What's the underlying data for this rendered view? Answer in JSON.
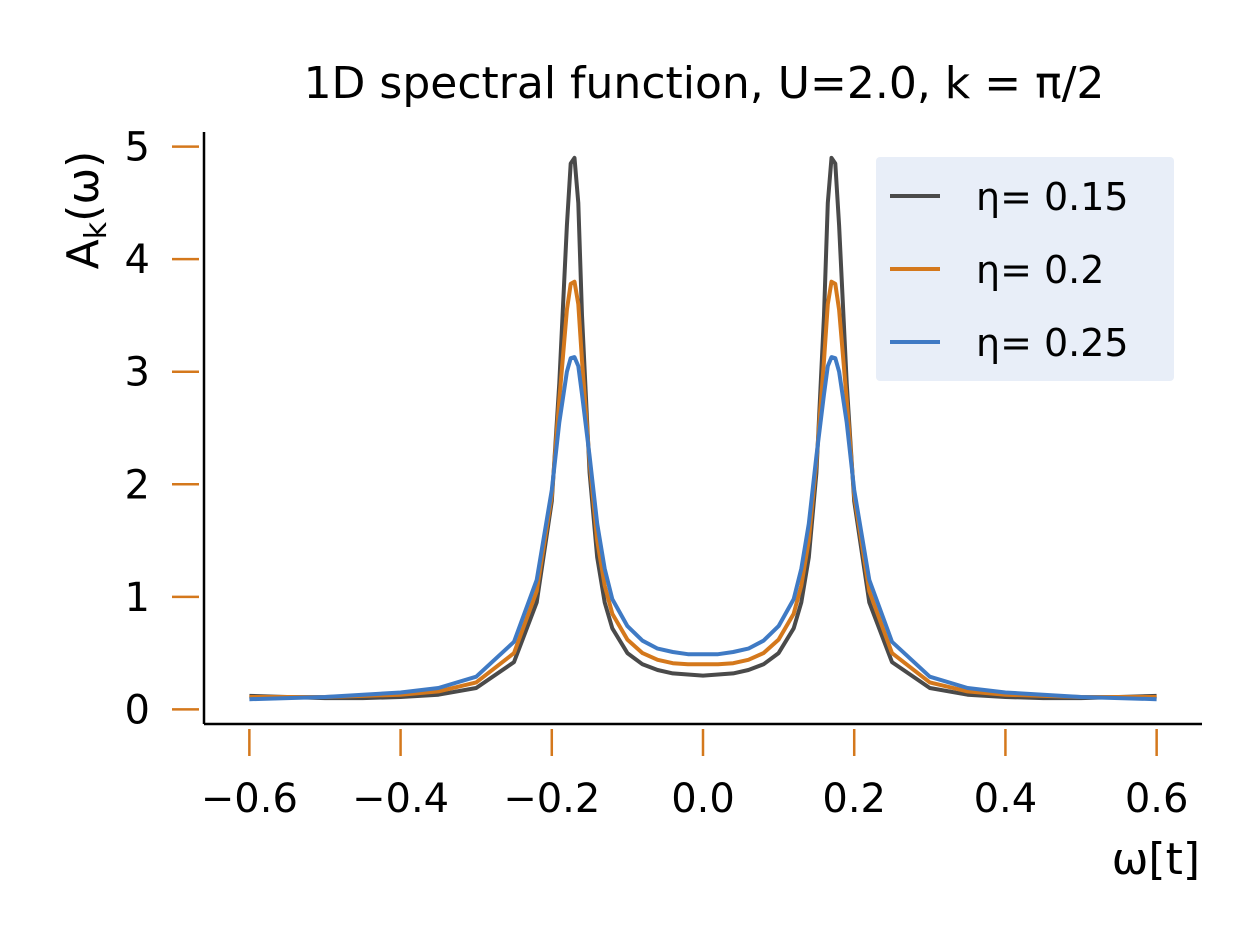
{
  "chart_data": {
    "type": "line",
    "title": "1D spectral function, U=2.0, k = π/2",
    "xlabel": "ω[t]",
    "ylabel_main": "A",
    "ylabel_sub": "k",
    "ylabel_tail": "(ω)",
    "xlim": [
      -0.66,
      0.66
    ],
    "ylim": [
      -0.13,
      5.13
    ],
    "xticks": [
      -0.6,
      -0.4,
      -0.2,
      0.0,
      0.2,
      0.4,
      0.6
    ],
    "xtick_labels": [
      "−0.6",
      "−0.4",
      "−0.2",
      "0.0",
      "0.2",
      "0.4",
      "0.6"
    ],
    "yticks": [
      0,
      1,
      2,
      3,
      4,
      5
    ],
    "ytick_labels": [
      "0",
      "1",
      "2",
      "3",
      "4",
      "5"
    ],
    "grid": false,
    "legend_position": "top-right",
    "tick_color": "#d4781c",
    "legend_bg": "#e8eef8",
    "series": [
      {
        "name": "η= 0.15",
        "color": "#4a4a4a",
        "x": [
          -0.6,
          -0.55,
          -0.5,
          -0.45,
          -0.4,
          -0.35,
          -0.3,
          -0.25,
          -0.22,
          -0.2,
          -0.19,
          -0.18,
          -0.175,
          -0.17,
          -0.165,
          -0.16,
          -0.15,
          -0.14,
          -0.13,
          -0.12,
          -0.1,
          -0.08,
          -0.06,
          -0.04,
          -0.02,
          0.0,
          0.02,
          0.04,
          0.06,
          0.08,
          0.1,
          0.12,
          0.13,
          0.14,
          0.15,
          0.16,
          0.165,
          0.17,
          0.175,
          0.18,
          0.19,
          0.2,
          0.22,
          0.25,
          0.3,
          0.35,
          0.4,
          0.45,
          0.5,
          0.55,
          0.6
        ],
        "y": [
          0.12,
          0.11,
          0.1,
          0.1,
          0.11,
          0.13,
          0.19,
          0.42,
          0.95,
          1.85,
          2.9,
          4.3,
          4.85,
          4.9,
          4.5,
          3.5,
          2.1,
          1.35,
          0.95,
          0.72,
          0.5,
          0.4,
          0.35,
          0.32,
          0.31,
          0.3,
          0.31,
          0.32,
          0.35,
          0.4,
          0.5,
          0.72,
          0.95,
          1.35,
          2.1,
          3.5,
          4.5,
          4.9,
          4.85,
          4.3,
          2.9,
          1.85,
          0.95,
          0.42,
          0.19,
          0.13,
          0.11,
          0.1,
          0.1,
          0.11,
          0.12
        ]
      },
      {
        "name": "η= 0.2",
        "color": "#d4781c",
        "x": [
          -0.6,
          -0.55,
          -0.5,
          -0.45,
          -0.4,
          -0.35,
          -0.3,
          -0.25,
          -0.22,
          -0.2,
          -0.19,
          -0.18,
          -0.175,
          -0.17,
          -0.165,
          -0.16,
          -0.15,
          -0.14,
          -0.13,
          -0.12,
          -0.1,
          -0.08,
          -0.06,
          -0.04,
          -0.02,
          0.0,
          0.02,
          0.04,
          0.06,
          0.08,
          0.1,
          0.12,
          0.13,
          0.14,
          0.15,
          0.16,
          0.165,
          0.17,
          0.175,
          0.18,
          0.19,
          0.2,
          0.22,
          0.25,
          0.3,
          0.35,
          0.4,
          0.45,
          0.5,
          0.55,
          0.6
        ],
        "y": [
          0.11,
          0.11,
          0.11,
          0.12,
          0.13,
          0.16,
          0.24,
          0.5,
          1.05,
          1.9,
          2.75,
          3.55,
          3.78,
          3.8,
          3.6,
          3.1,
          2.2,
          1.5,
          1.1,
          0.85,
          0.62,
          0.5,
          0.44,
          0.41,
          0.4,
          0.4,
          0.4,
          0.41,
          0.44,
          0.5,
          0.62,
          0.85,
          1.1,
          1.5,
          2.2,
          3.1,
          3.6,
          3.8,
          3.78,
          3.55,
          2.75,
          1.9,
          1.05,
          0.5,
          0.24,
          0.16,
          0.13,
          0.12,
          0.11,
          0.11,
          0.11
        ]
      },
      {
        "name": "η= 0.25",
        "color": "#3f7ac4",
        "x": [
          -0.6,
          -0.55,
          -0.5,
          -0.45,
          -0.4,
          -0.35,
          -0.3,
          -0.25,
          -0.22,
          -0.2,
          -0.19,
          -0.18,
          -0.175,
          -0.17,
          -0.165,
          -0.16,
          -0.15,
          -0.14,
          -0.13,
          -0.12,
          -0.1,
          -0.08,
          -0.06,
          -0.04,
          -0.02,
          0.0,
          0.02,
          0.04,
          0.06,
          0.08,
          0.1,
          0.12,
          0.13,
          0.14,
          0.15,
          0.16,
          0.165,
          0.17,
          0.175,
          0.18,
          0.19,
          0.2,
          0.22,
          0.25,
          0.3,
          0.35,
          0.4,
          0.45,
          0.5,
          0.55,
          0.6
        ],
        "y": [
          0.09,
          0.1,
          0.11,
          0.13,
          0.15,
          0.19,
          0.29,
          0.6,
          1.15,
          1.95,
          2.55,
          3.0,
          3.12,
          3.13,
          3.05,
          2.8,
          2.25,
          1.65,
          1.25,
          0.98,
          0.74,
          0.61,
          0.54,
          0.51,
          0.49,
          0.49,
          0.49,
          0.51,
          0.54,
          0.61,
          0.74,
          0.98,
          1.25,
          1.65,
          2.25,
          2.8,
          3.05,
          3.13,
          3.12,
          3.0,
          2.55,
          1.95,
          1.15,
          0.6,
          0.29,
          0.19,
          0.15,
          0.13,
          0.11,
          0.1,
          0.09
        ]
      }
    ]
  }
}
